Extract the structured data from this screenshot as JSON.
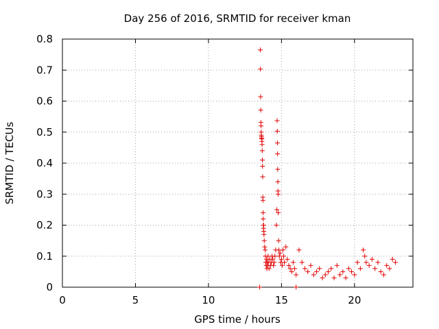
{
  "chart_data": {
    "type": "scatter",
    "title": "Day 256 of 2016, SRMTID for receiver kman",
    "xlabel": "GPS time / hours",
    "ylabel": "SRMTID / TECUs",
    "xlim": [
      0,
      24.0
    ],
    "ylim": [
      0,
      0.8
    ],
    "xticks": [
      0,
      5,
      10,
      15,
      20
    ],
    "yticks": [
      0,
      0.1,
      0.2,
      0.3,
      0.4,
      0.5,
      0.6,
      0.7,
      0.8
    ],
    "grid": true,
    "marker": "+",
    "marker_color": "#e00000",
    "series": [
      {
        "name": "SRMTID",
        "x": [
          13.55,
          13.56,
          13.57,
          13.58,
          13.59,
          13.6,
          13.61,
          13.62,
          13.63,
          13.64,
          13.65,
          13.66,
          13.67,
          13.68,
          13.69,
          13.7,
          13.71,
          13.72,
          13.73,
          13.74,
          13.75,
          13.76,
          13.77,
          13.78,
          13.79,
          13.8,
          13.82,
          13.85,
          13.88,
          13.9,
          13.92,
          13.95,
          13.98,
          14.0,
          14.03,
          14.05,
          14.08,
          14.1,
          14.15,
          14.2,
          14.25,
          14.3,
          14.35,
          14.4,
          14.45,
          14.5,
          14.55,
          14.6,
          14.65,
          14.68,
          14.7,
          14.71,
          14.72,
          14.73,
          14.74,
          14.75,
          14.76,
          14.77,
          14.78,
          14.8,
          14.82,
          14.85,
          14.9,
          14.95,
          15.0,
          15.05,
          15.1,
          15.15,
          15.2,
          15.3,
          15.4,
          15.5,
          15.6,
          15.7,
          15.8,
          15.9,
          16.0,
          16.2,
          16.4,
          16.6,
          16.8,
          17.0,
          17.2,
          17.4,
          17.6,
          17.8,
          18.0,
          18.2,
          18.4,
          18.6,
          18.8,
          19.0,
          19.2,
          19.4,
          19.6,
          19.8,
          20.0,
          20.2,
          20.4,
          20.6,
          20.7,
          20.8,
          21.0,
          21.2,
          21.4,
          21.6,
          21.8,
          22.0,
          22.2,
          22.4,
          22.6,
          22.8,
          13.5,
          16.0
        ],
        "y": [
          0.765,
          0.703,
          0.614,
          0.571,
          0.531,
          0.52,
          0.5,
          0.49,
          0.485,
          0.48,
          0.478,
          0.47,
          0.46,
          0.44,
          0.41,
          0.39,
          0.356,
          0.29,
          0.28,
          0.24,
          0.22,
          0.2,
          0.19,
          0.2,
          0.18,
          0.17,
          0.15,
          0.13,
          0.12,
          0.1,
          0.08,
          0.07,
          0.09,
          0.06,
          0.08,
          0.07,
          0.1,
          0.08,
          0.06,
          0.09,
          0.07,
          0.08,
          0.1,
          0.09,
          0.07,
          0.08,
          0.1,
          0.12,
          0.2,
          0.25,
          0.537,
          0.503,
          0.465,
          0.43,
          0.38,
          0.34,
          0.31,
          0.3,
          0.24,
          0.15,
          0.12,
          0.1,
          0.11,
          0.08,
          0.09,
          0.07,
          0.12,
          0.1,
          0.08,
          0.13,
          0.09,
          0.07,
          0.06,
          0.05,
          0.08,
          0.06,
          0.04,
          0.12,
          0.08,
          0.06,
          0.05,
          0.07,
          0.04,
          0.05,
          0.06,
          0.03,
          0.04,
          0.05,
          0.06,
          0.03,
          0.07,
          0.04,
          0.05,
          0.03,
          0.06,
          0.05,
          0.04,
          0.08,
          0.06,
          0.12,
          0.1,
          0.08,
          0.07,
          0.09,
          0.06,
          0.08,
          0.05,
          0.04,
          0.07,
          0.06,
          0.09,
          0.08,
          0.0,
          0.0
        ]
      }
    ]
  }
}
